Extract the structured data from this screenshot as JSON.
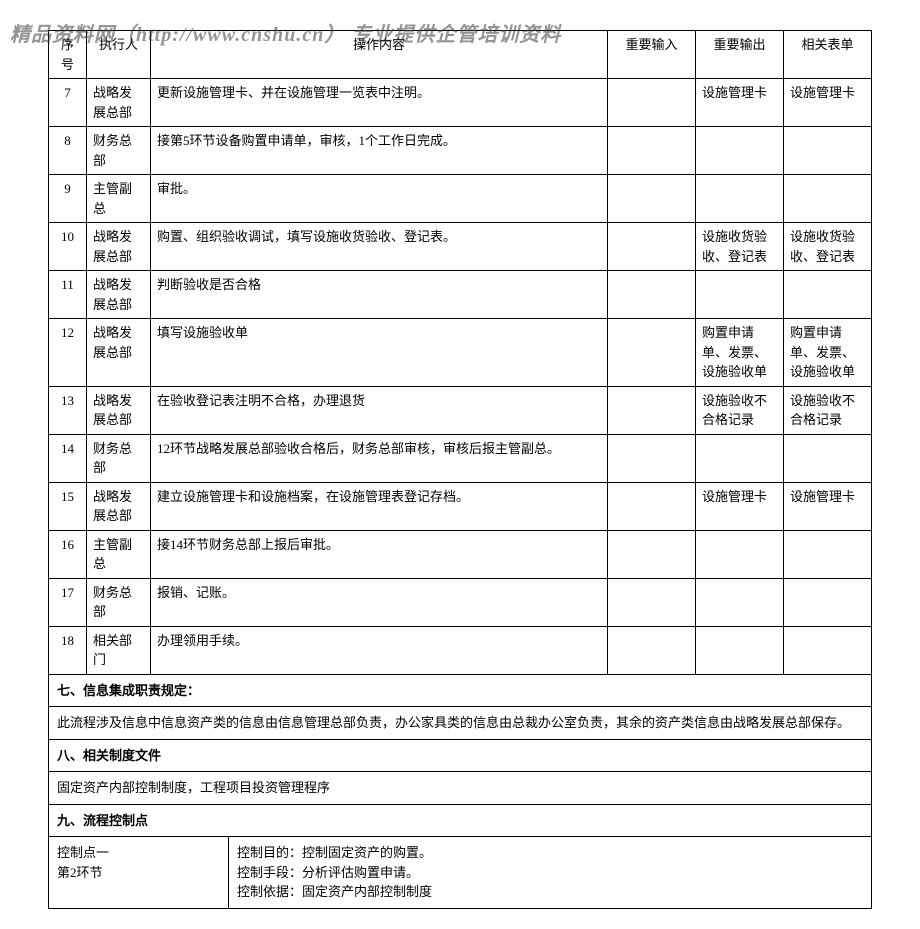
{
  "watermark": "精品资料网（http://www.cnshu.cn） 专业提供企管培训资料",
  "headers": {
    "seq": "序号",
    "executor": "执行人",
    "operation": "操作内容",
    "input": "重要输入",
    "output": "重要输出",
    "form": "相关表单"
  },
  "rows": [
    {
      "seq": "7",
      "executor": "战略发展总部",
      "operation": "更新设施管理卡、并在设施管理一览表中注明。",
      "input": "",
      "output": "设施管理卡",
      "form": "设施管理卡"
    },
    {
      "seq": "8",
      "executor": "财务总部",
      "operation": "接第5环节设备购置申请单，审核，1个工作日完成。",
      "input": "",
      "output": "",
      "form": ""
    },
    {
      "seq": "9",
      "executor": "主管副总",
      "operation": "审批。",
      "input": "",
      "output": "",
      "form": ""
    },
    {
      "seq": "10",
      "executor": "战略发展总部",
      "operation": "购置、组织验收调试，填写设施收货验收、登记表。",
      "input": "",
      "output": "设施收货验收、登记表",
      "form": "设施收货验收、登记表"
    },
    {
      "seq": "11",
      "executor": "战略发展总部",
      "operation": "判断验收是否合格",
      "input": "",
      "output": "",
      "form": ""
    },
    {
      "seq": "12",
      "executor": "战略发展总部",
      "operation": "填写设施验收单",
      "input": "",
      "output": "购置申请单、发票、设施验收单",
      "form": "购置申请单、发票、设施验收单"
    },
    {
      "seq": "13",
      "executor": "战略发展总部",
      "operation": "在验收登记表注明不合格，办理退货",
      "input": "",
      "output": "设施验收不合格记录",
      "form": "设施验收不合格记录"
    },
    {
      "seq": "14",
      "executor": "财务总部",
      "operation": "12环节战略发展总部验收合格后，财务总部审核，审核后报主管副总。",
      "input": "",
      "output": "",
      "form": ""
    },
    {
      "seq": "15",
      "executor": "战略发展总部",
      "operation": "建立设施管理卡和设施档案，在设施管理表登记存档。",
      "input": "",
      "output": "设施管理卡",
      "form": "设施管理卡"
    },
    {
      "seq": "16",
      "executor": "主管副总",
      "operation": "接14环节财务总部上报后审批。",
      "input": "",
      "output": "",
      "form": ""
    },
    {
      "seq": "17",
      "executor": "财务总部",
      "operation": "报销、记账。",
      "input": "",
      "output": "",
      "form": ""
    },
    {
      "seq": "18",
      "executor": "相关部门",
      "operation": "办理领用手续。",
      "input": "",
      "output": "",
      "form": ""
    }
  ],
  "section7": {
    "title": "七、信息集成职责规定：",
    "content": "此流程涉及信息中信息资产类的信息由信息管理总部负责，办公家具类的信息由总裁办公室负责，其余的资产类信息由战略发展总部保存。"
  },
  "section8": {
    "title": "八、相关制度文件",
    "content": "固定资产内部控制制度，工程项目投资管理程序"
  },
  "section9": {
    "title": "九、流程控制点",
    "control_point": "控制点一\n第2环节",
    "control_detail": "控制目的：控制固定资产的购置。\n控制手段：分析评估购置申请。\n控制依据：固定资产内部控制制度"
  }
}
